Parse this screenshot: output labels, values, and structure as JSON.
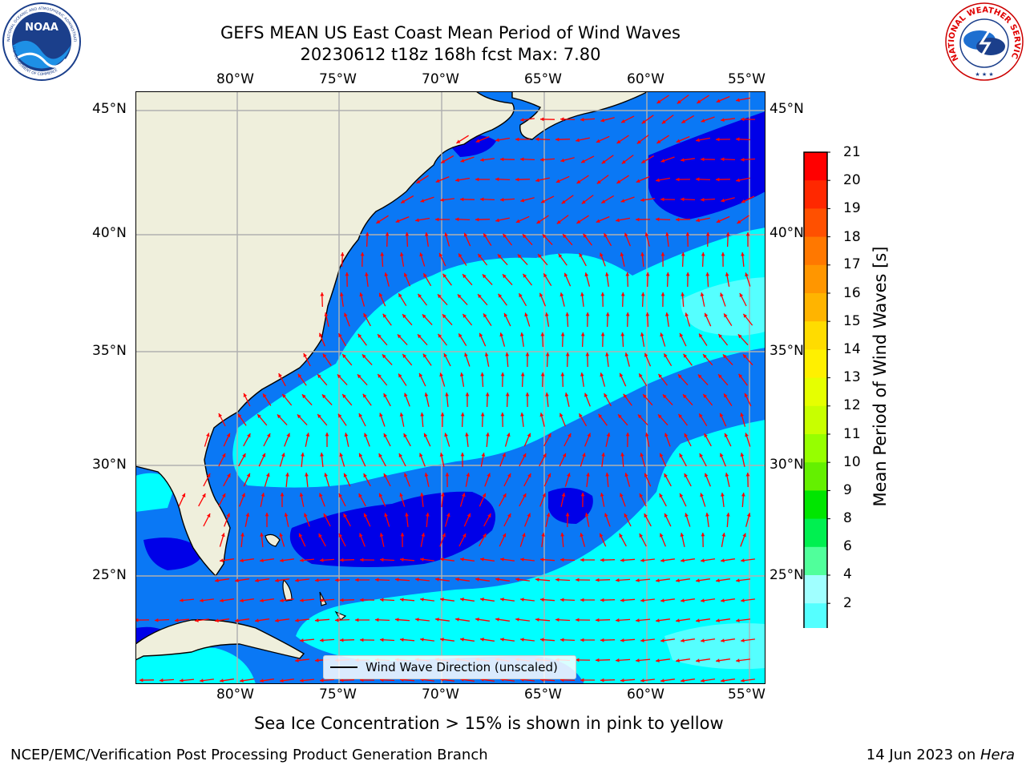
{
  "header": {
    "title_line1": "GEFS MEAN US East Coast Mean Period of Wind Waves",
    "title_line2": "20230612 t18z 168h fcst   Max: 7.80"
  },
  "logos": {
    "noaa_text": "NOAA",
    "noaa_ring_top": "NATIONAL OCEANIC AND ATMOSPHERIC ADMINISTRATION",
    "noaa_ring_bottom": "U.S. DEPARTMENT OF COMMERCE",
    "nws_ring": "NATIONAL WEATHER SERVICE"
  },
  "map": {
    "lon_labels": [
      "80°W",
      "75°W",
      "70°W",
      "65°W",
      "60°W",
      "55°W"
    ],
    "lat_labels": [
      "45°N",
      "40°N",
      "35°N",
      "30°N",
      "25°N"
    ],
    "legend_label": "Wind Wave Direction (unscaled)",
    "colors": {
      "land": "#efefdc",
      "level_2_4": "#0a78f5",
      "level_4_6": "#00ffff",
      "level_6_8": "#55ffff",
      "below_2": "#0000e8",
      "arrow": "#ff0000",
      "grid": "#b0b0b0"
    }
  },
  "colorbar": {
    "title": "Mean Period of Wind Waves [s]",
    "ticks": [
      "21",
      "20",
      "19",
      "18",
      "17",
      "16",
      "15",
      "14",
      "13",
      "12",
      "11",
      "10",
      "9",
      "8",
      "6",
      "4",
      "2"
    ],
    "colors": [
      "#ff0000",
      "#ff2800",
      "#ff5000",
      "#ff7800",
      "#ff9600",
      "#ffb400",
      "#ffdc00",
      "#fff000",
      "#e6ff00",
      "#c8ff00",
      "#96ff00",
      "#64f000",
      "#00e600",
      "#00f050",
      "#50ff9b",
      "#a0ffff",
      "#55ffff",
      "#00ffff",
      "#0a78f5",
      "#0000ff"
    ]
  },
  "footer": {
    "note": "Sea Ice Concentration > 15% is shown in pink to yellow",
    "left": "NCEP/EMC/Verification Post Processing Product Generation Branch",
    "right_date": "14 Jun 2023 on ",
    "right_host": "Hera"
  }
}
